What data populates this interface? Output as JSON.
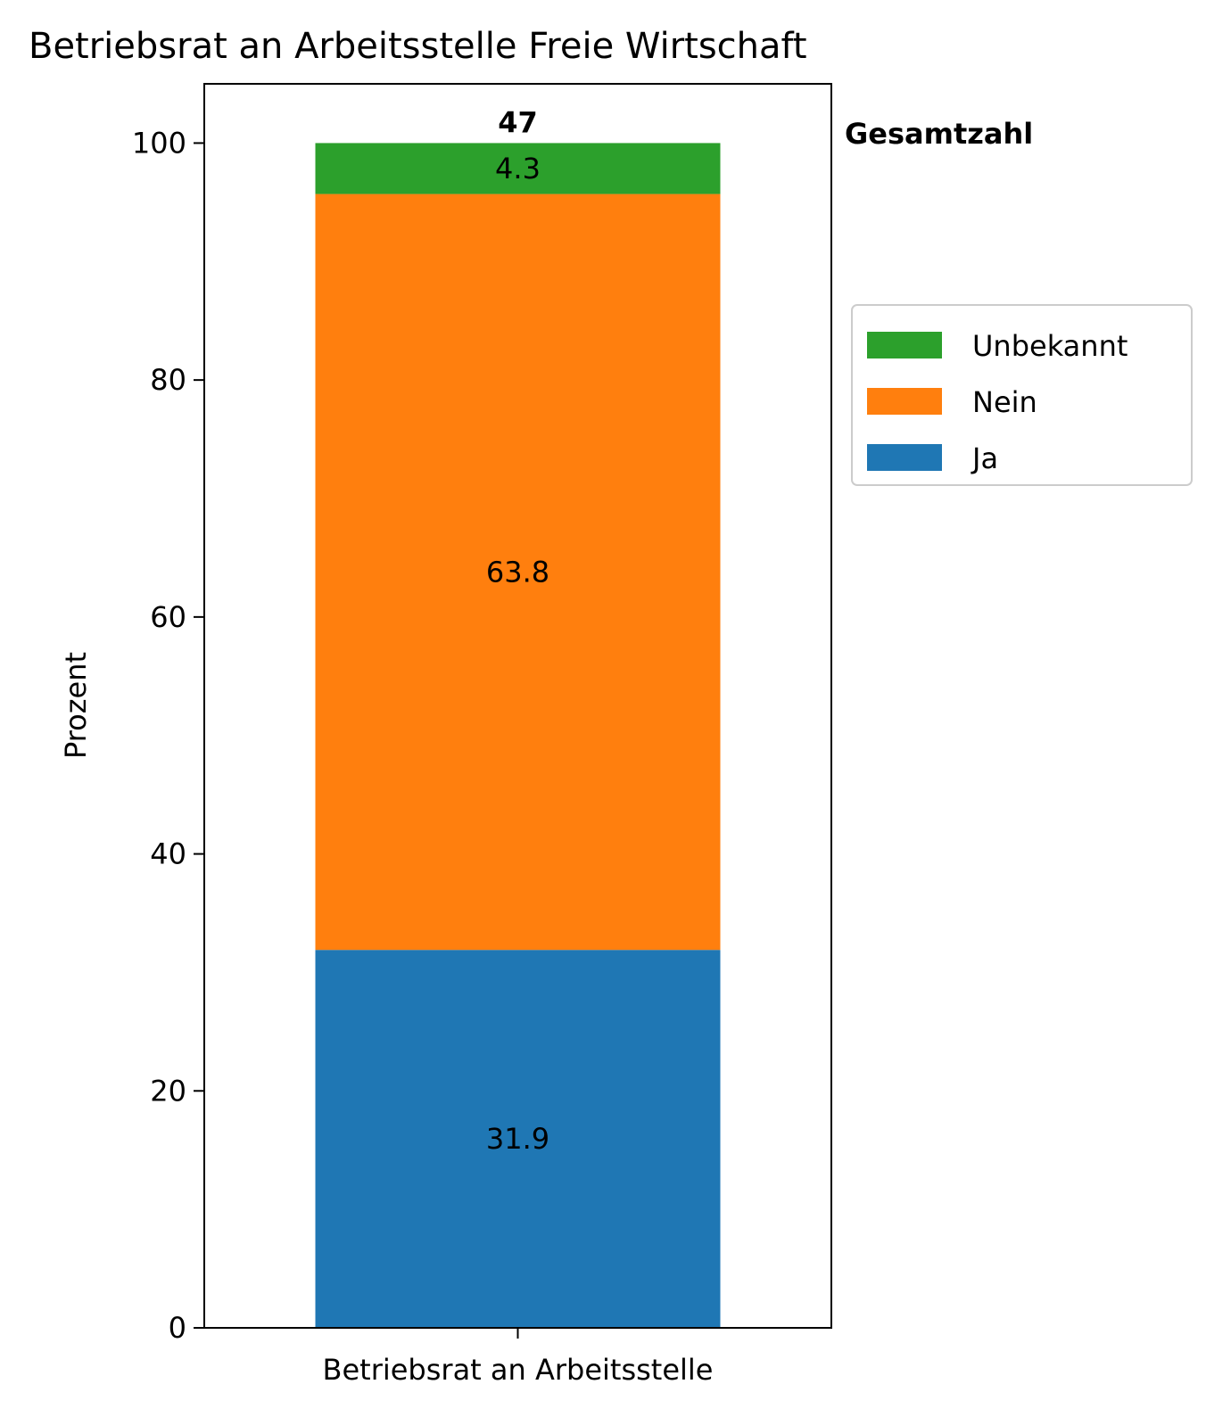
{
  "chart_data": {
    "type": "bar",
    "stacked": true,
    "title": "Betriebsrat an Arbeitsstelle Freie Wirtschaft",
    "xlabel": "",
    "ylabel": "Prozent",
    "categories": [
      "Betriebsrat an Arbeitsstelle"
    ],
    "ylim": [
      0,
      105
    ],
    "yticks": [
      "0",
      "20",
      "40",
      "60",
      "80",
      "100"
    ],
    "series": [
      {
        "name": "Ja",
        "color": "#1f77b4",
        "values": [
          31.9
        ],
        "label": "31.9"
      },
      {
        "name": "Nein",
        "color": "#ff7f0e",
        "values": [
          63.8
        ],
        "label": "63.8"
      },
      {
        "name": "Unbekannt",
        "color": "#2ca02c",
        "values": [
          4.3
        ],
        "label": "4.3"
      }
    ],
    "total": {
      "value": "47",
      "heading": "Gesamtzahl"
    },
    "legend": {
      "placement": "right",
      "order": [
        "Unbekannt",
        "Nein",
        "Ja"
      ]
    },
    "grid": false
  }
}
